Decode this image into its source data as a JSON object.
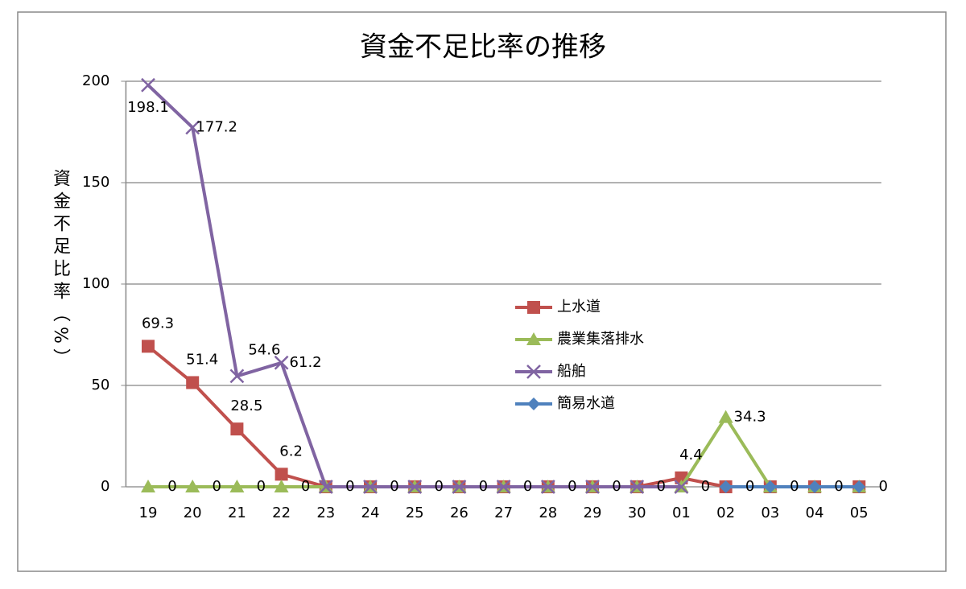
{
  "chart_data": {
    "type": "line",
    "title": "資金不足比率の推移",
    "y_label": "資金不足比率（%）",
    "categories": [
      "19",
      "20",
      "21",
      "22",
      "23",
      "24",
      "25",
      "26",
      "27",
      "28",
      "29",
      "30",
      "01",
      "02",
      "03",
      "04",
      "05"
    ],
    "ylim": [
      0,
      200
    ],
    "yticks": [
      0,
      50,
      100,
      150,
      200
    ],
    "grid": true,
    "legend": "right",
    "series": [
      {
        "name": "上水道",
        "color": "#c0504d",
        "marker": "square",
        "values": [
          69.3,
          51.4,
          28.5,
          6.2,
          0,
          0,
          0,
          0,
          0,
          0,
          0,
          0,
          4.4,
          0,
          0,
          0,
          0
        ],
        "value_labels": [
          "69.3",
          "51.4",
          "28.5",
          "6.2",
          null,
          null,
          null,
          null,
          null,
          null,
          null,
          null,
          "4.4",
          null,
          null,
          null,
          null
        ]
      },
      {
        "name": "農業集落排水",
        "color": "#9bbb59",
        "marker": "triangle",
        "values": [
          0,
          0,
          0,
          0,
          0,
          0,
          0,
          0,
          0,
          0,
          0,
          0,
          0,
          34.3,
          0,
          0,
          0
        ],
        "value_labels": [
          "0",
          "0",
          "0",
          "0",
          null,
          null,
          null,
          null,
          null,
          null,
          null,
          null,
          null,
          "34.3",
          null,
          null,
          null
        ]
      },
      {
        "name": "船舶",
        "color": "#8064a2",
        "marker": "x",
        "values": [
          198.1,
          177.2,
          54.6,
          61.2,
          0,
          0,
          0,
          0,
          0,
          0,
          0,
          0,
          0,
          null,
          null,
          null,
          null
        ],
        "value_labels": [
          "198.1",
          "177.2",
          "54.6",
          "61.2",
          "0",
          "0",
          "0",
          "0",
          "0",
          "0",
          "0",
          "0",
          "0",
          null,
          null,
          null,
          null
        ]
      },
      {
        "name": "簡易水道",
        "color": "#4f81bd",
        "marker": "diamond",
        "values": [
          null,
          null,
          null,
          null,
          null,
          null,
          null,
          null,
          null,
          null,
          null,
          null,
          null,
          0,
          0,
          0,
          0
        ],
        "value_labels": [
          null,
          null,
          null,
          null,
          null,
          null,
          null,
          null,
          null,
          null,
          null,
          null,
          null,
          "0",
          "0",
          "0",
          "0"
        ]
      }
    ]
  }
}
